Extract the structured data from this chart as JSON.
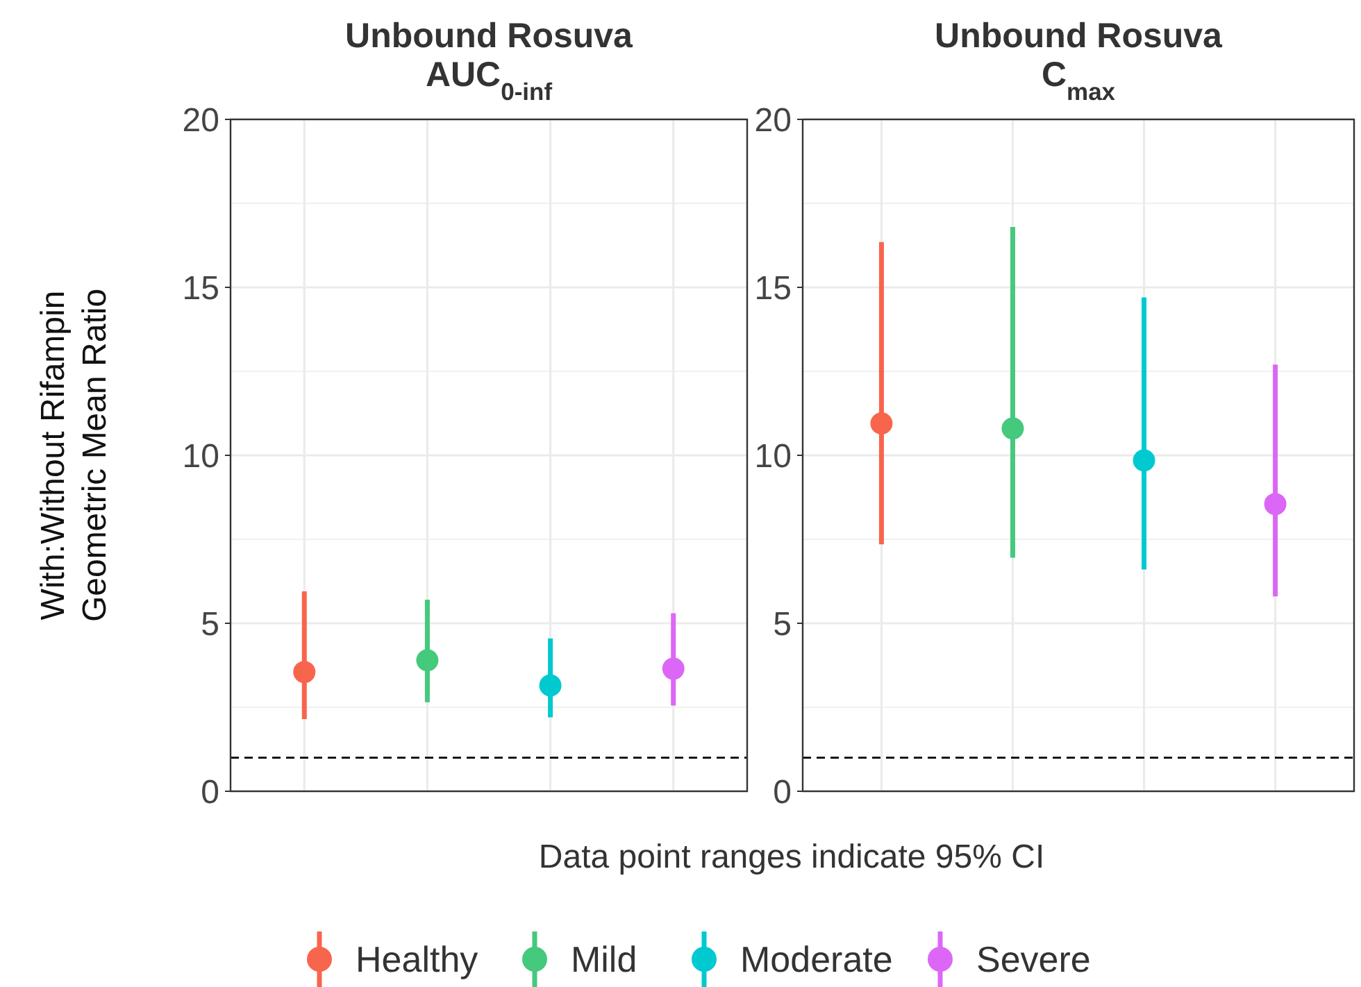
{
  "chart_data": [
    {
      "type": "scatter",
      "title": "Unbound Rosuva\nAUC$_{0-inf}$",
      "ylabel": "With:Without Rifampin\nGeometric Mean Ratio",
      "categories": [
        null,
        null,
        null,
        null
      ],
      "ylim": [
        0,
        20
      ],
      "yticks": [
        0,
        5,
        10,
        15,
        20
      ],
      "grid": true,
      "legend": "bottom",
      "marker": "circle",
      "ref_lines": [
        {
          "axis": "y",
          "value": 1,
          "line_style": "dashed",
          "color": "#000000"
        }
      ],
      "annotations": [
        "Data point ranges indicate 95% CI"
      ],
      "series": [
        {
          "name": "Healthy",
          "color": "#f8654d",
          "values": [
            3.55,
            null,
            null,
            null
          ],
          "errors": [
            [
              2.15,
              5.95
            ],
            null,
            null,
            null
          ]
        },
        {
          "name": "Mild",
          "color": "#45c97c",
          "values": [
            null,
            3.9,
            null,
            null
          ],
          "errors": [
            null,
            [
              2.65,
              5.7
            ],
            null,
            null
          ]
        },
        {
          "name": "Moderate",
          "color": "#00c9cf",
          "values": [
            null,
            null,
            3.15,
            null
          ],
          "errors": [
            null,
            null,
            [
              2.2,
              4.55
            ],
            null
          ]
        },
        {
          "name": "Severe",
          "color": "#dc67f7",
          "values": [
            null,
            null,
            null,
            3.65
          ],
          "errors": [
            null,
            null,
            null,
            [
              2.55,
              5.3
            ]
          ]
        }
      ]
    },
    {
      "type": "scatter",
      "title": "Unbound Rosuva\nC$_{max}$",
      "categories": [
        null,
        null,
        null,
        null
      ],
      "ylim": [
        0,
        20
      ],
      "yticks": [
        0,
        5,
        10,
        15,
        20
      ],
      "grid": true,
      "marker": "circle",
      "ref_lines": [
        {
          "axis": "y",
          "value": 1,
          "line_style": "dashed",
          "color": "#000000"
        }
      ],
      "series": [
        {
          "color": "#f8654d",
          "values": [
            10.95,
            null,
            null,
            null
          ],
          "errors": [
            [
              7.35,
              16.35
            ],
            null,
            null,
            null
          ]
        },
        {
          "color": "#45c97c",
          "values": [
            null,
            10.8,
            null,
            null
          ],
          "errors": [
            null,
            [
              6.95,
              16.8
            ],
            null,
            null
          ]
        },
        {
          "color": "#00c9cf",
          "values": [
            null,
            null,
            9.85,
            null
          ],
          "errors": [
            null,
            null,
            [
              6.6,
              14.7
            ],
            null
          ]
        },
        {
          "color": "#dc67f7",
          "values": [
            null,
            null,
            null,
            8.55
          ],
          "errors": [
            null,
            null,
            null,
            [
              5.8,
              12.7
            ]
          ]
        }
      ]
    }
  ]
}
